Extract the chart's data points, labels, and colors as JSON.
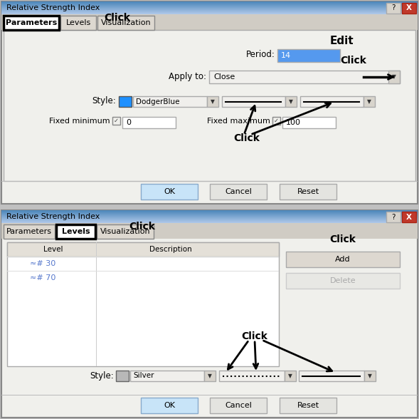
{
  "bg_color": "#c0c0c0",
  "dialog_bg": "#f0f0ec",
  "title_bar_start": "#5588bb",
  "title_bar_end": "#99bbdd",
  "tab_area_bg": "#d0ccc4",
  "tab_active_bg": "#ffffff",
  "tab_inactive_bg": "#ddd8d0",
  "content_bg": "#f0f0ec",
  "button_ok_bg": "#c8e4f8",
  "button_ok_border": "#88aacc",
  "button_bg": "#e4e4e0",
  "button_border": "#aaaaaa",
  "field_bg": "#ffffff",
  "period_field_bg": "#5599ee",
  "period_value": "14",
  "apply_to_value": "Close",
  "style_color1": "#1e90ff",
  "style_name1": "DodgerBlue",
  "style_color2": "#b8b8b8",
  "style_name2": "Silver",
  "fixed_min": "0",
  "fixed_max": "100",
  "level1": "≈# 30",
  "level2": "≈# 70",
  "table_header_bg": "#e8e4dc",
  "table_row_bg": "#f8f8f4",
  "close_btn_bg": "#c0392b",
  "help_btn_bg": "#d8d4cc",
  "separator_color": "#bbbbbb",
  "arrow_color": "#000000",
  "click_fontsize": 10,
  "label_fontsize": 8,
  "tab_fontsize": 8
}
